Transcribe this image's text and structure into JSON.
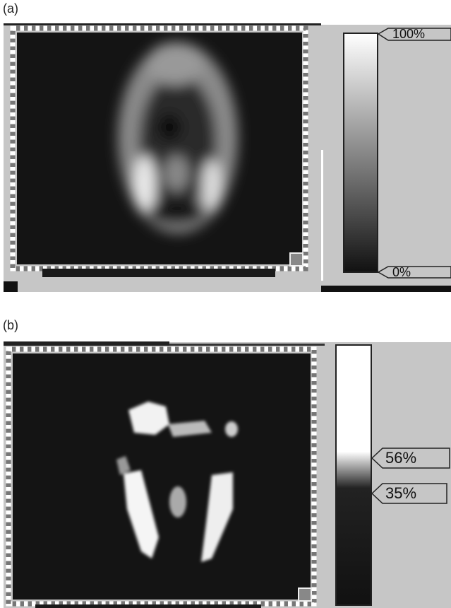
{
  "panels": [
    {
      "label": "(a)",
      "scale": {
        "top": "100%",
        "bottom": "0%"
      }
    },
    {
      "label": "(b)",
      "scale": {
        "upper": "56%",
        "lower": "35%"
      }
    }
  ]
}
